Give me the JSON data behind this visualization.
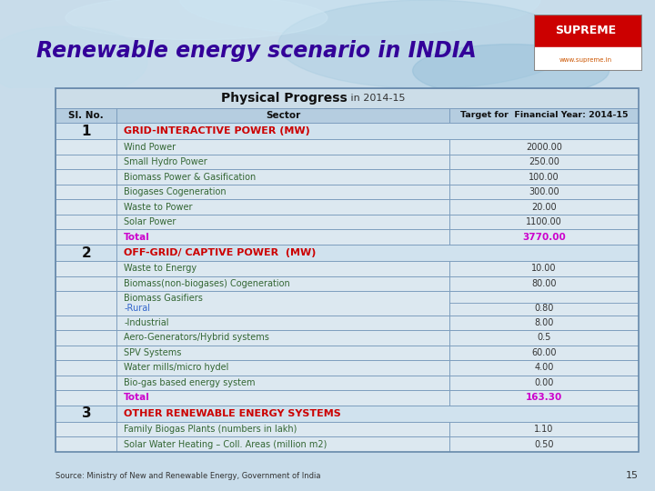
{
  "title": "Renewable energy scenario in INDIA",
  "col_headers": [
    "Sl. No.",
    "Sector",
    "Target for  Financial Year: 2014-15"
  ],
  "rows": [
    {
      "type": "main_header",
      "text": "Physical Progress",
      "suffix": " in 2014-15"
    },
    {
      "type": "col_header"
    },
    {
      "type": "section_heading",
      "num": "1",
      "text": "GRID-INTERACTIVE POWER (MW)"
    },
    {
      "type": "data",
      "sector": "Wind Power",
      "value": "2000.00"
    },
    {
      "type": "data",
      "sector": "Small Hydro Power",
      "value": "250.00"
    },
    {
      "type": "data",
      "sector": "Biomass Power & Gasification",
      "value": "100.00"
    },
    {
      "type": "data",
      "sector": "Biogases Cogeneration",
      "value": "300.00"
    },
    {
      "type": "data",
      "sector": "Waste to Power",
      "value": "20.00"
    },
    {
      "type": "data",
      "sector": "Solar Power",
      "value": "1100.00"
    },
    {
      "type": "total",
      "label": "Total",
      "value": "3770.00"
    },
    {
      "type": "section_heading",
      "num": "2",
      "text": "OFF-GRID/ CAPTIVE POWER  (MW)"
    },
    {
      "type": "data",
      "sector": "Waste to Energy",
      "value": "10.00"
    },
    {
      "type": "data",
      "sector": "Biomass(non-biogases) Cogeneration",
      "value": "80.00"
    },
    {
      "type": "data_double",
      "sector1": "Biomass Gasifiers",
      "sector2": "-Rural",
      "value": "0.80"
    },
    {
      "type": "data",
      "sector": "-Industrial",
      "value": "8.00"
    },
    {
      "type": "data",
      "sector": "Aero-Generators/Hybrid systems",
      "value": "0.5"
    },
    {
      "type": "data",
      "sector": "SPV Systems",
      "value": "60.00"
    },
    {
      "type": "data",
      "sector": "Water mills/micro hydel",
      "value": "4.00"
    },
    {
      "type": "data",
      "sector": "Bio-gas based energy system",
      "value": "0.00"
    },
    {
      "type": "total",
      "label": "Total",
      "value": "163.30"
    },
    {
      "type": "section_heading",
      "num": "3",
      "text": "OTHER RENEWABLE ENERGY SYSTEMS"
    },
    {
      "type": "data",
      "sector": "Family Biogas Plants (numbers in lakh)",
      "value": "1.10"
    },
    {
      "type": "data",
      "sector": "Solar Water Heating – Coll. Areas (million m2)",
      "value": "0.50"
    }
  ],
  "source": "Source: Ministry of New and Renewable Energy, Government of India",
  "page_num": "15",
  "header_bg": "#ccdde8",
  "col_header_bg": "#b5cde0",
  "data_row_bg": "#dce8f0",
  "section_heading_bg": "#d0e2ee",
  "heading_color": "#cc0000",
  "total_color": "#cc00cc",
  "data_text_color": "#336633",
  "value_color": "#333333",
  "title_color": "#330099",
  "bg_top": "#b8d8ea",
  "supreme_red": "#cc0000",
  "supreme_orange": "#cc6600"
}
